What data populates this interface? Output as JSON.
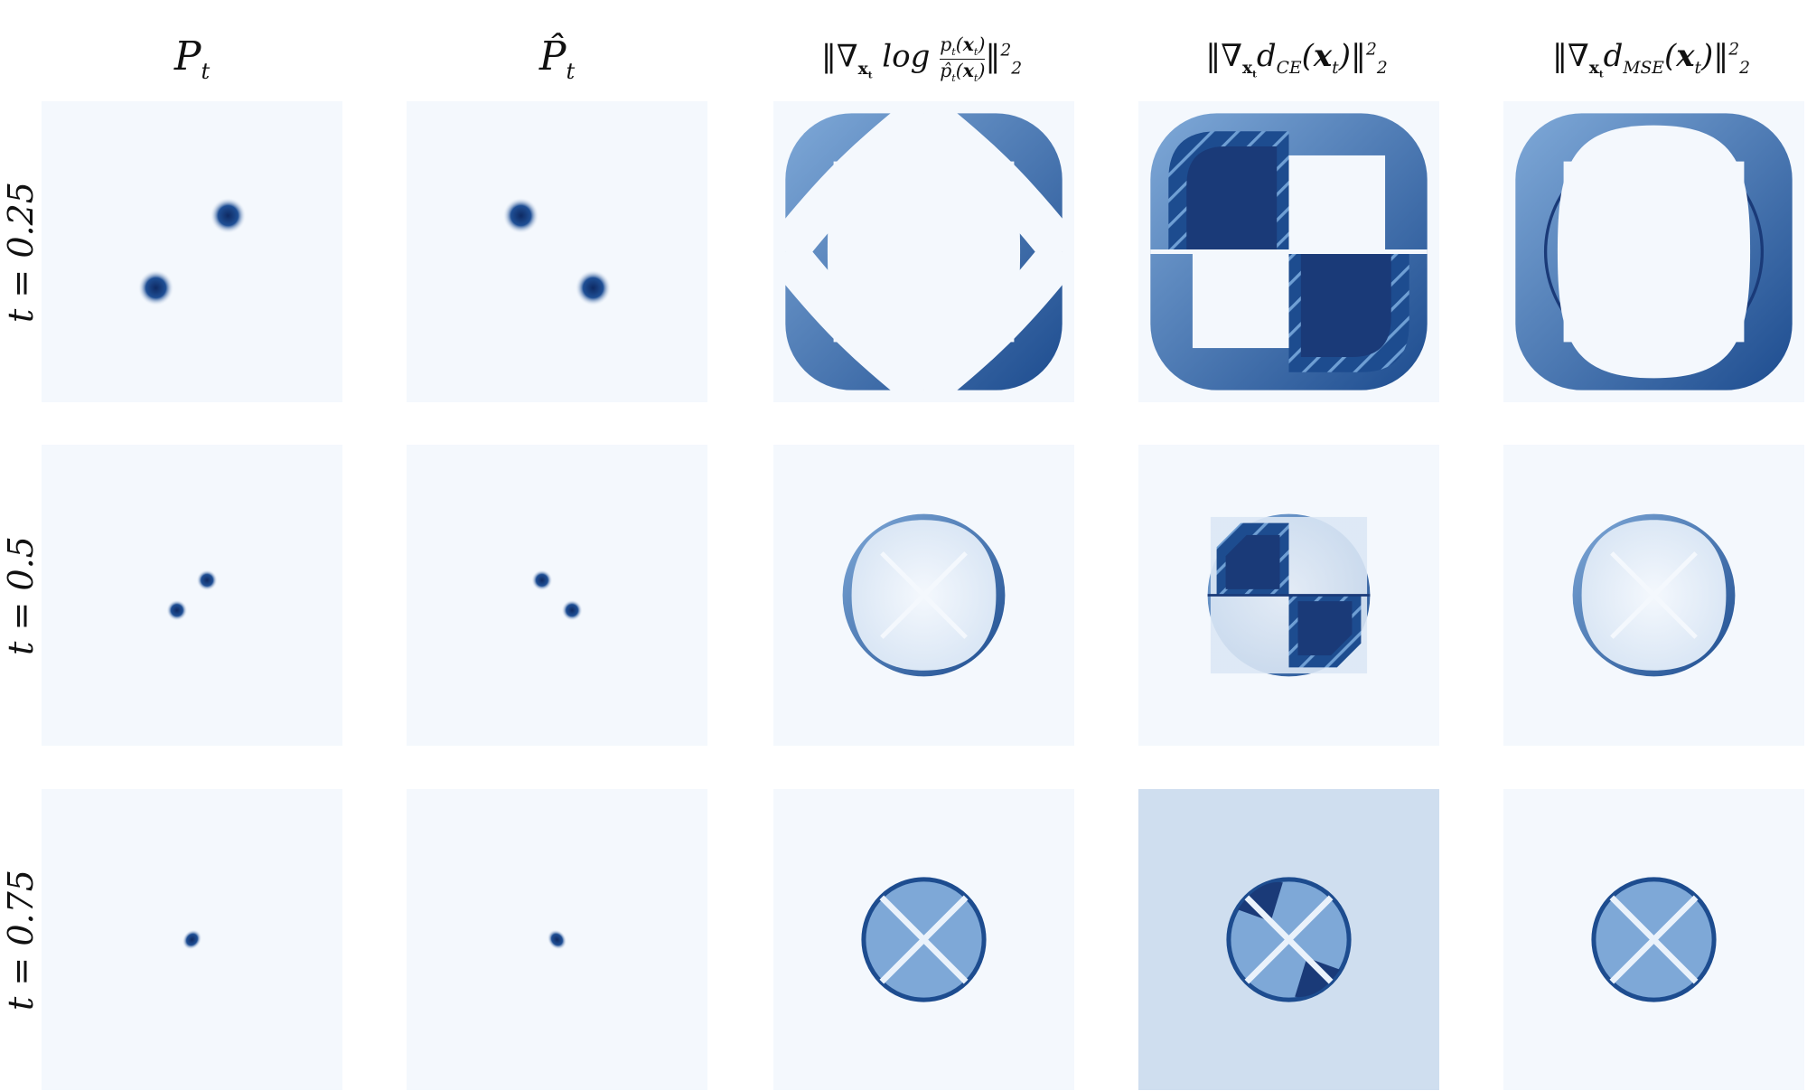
{
  "columns": [
    {
      "title": "P_t"
    },
    {
      "title": "P̂_t"
    },
    {
      "title": "‖∇_{x_t} log p_t(x_t)/p̂_t(x_t)‖²₂"
    },
    {
      "title": "‖∇_{x_t} d_CE(x_t)‖²₂"
    },
    {
      "title": "‖∇_{x_t} d_MSE(x_t)‖²₂"
    }
  ],
  "rows": [
    {
      "label": "t = 0.25"
    },
    {
      "label": "t = 0.5"
    },
    {
      "label": "t = 0.75"
    }
  ],
  "colors": {
    "background_light": "#f4f8fd",
    "mid_blue": "#6a9bd0",
    "dark_blue": "#1a3a78",
    "navy": "#0e2a63"
  }
}
